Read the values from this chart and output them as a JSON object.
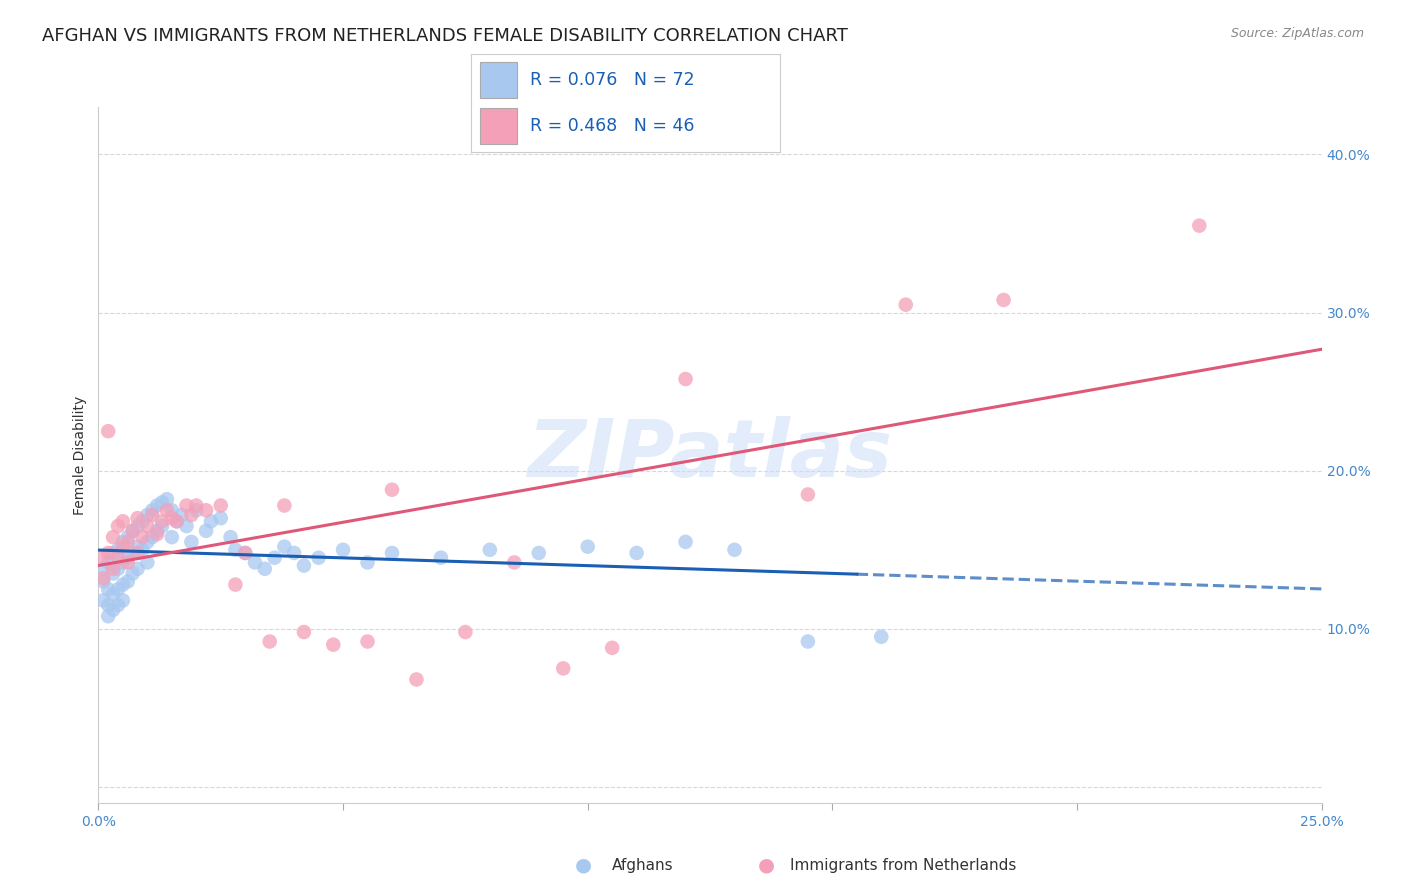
{
  "title": "AFGHAN VS IMMIGRANTS FROM NETHERLANDS FEMALE DISABILITY CORRELATION CHART",
  "source": "Source: ZipAtlas.com",
  "ylabel": "Female Disability",
  "watermark": "ZIPatlas",
  "legend_r1": "R = 0.076",
  "legend_n1": "N = 72",
  "legend_r2": "R = 0.468",
  "legend_n2": "N = 46",
  "afghan_color": "#a8c8f0",
  "netherlands_color": "#f4a0b8",
  "afghan_line_color": "#1a5fb4",
  "netherlands_line_color": "#e05878",
  "background_color": "#ffffff",
  "grid_color": "#d8d8d8",
  "title_fontsize": 13,
  "axis_label_fontsize": 10,
  "tick_fontsize": 10,
  "xlim": [
    0.0,
    0.25
  ],
  "ylim": [
    -0.01,
    0.43
  ],
  "yticks": [
    0.0,
    0.1,
    0.2,
    0.3,
    0.4
  ],
  "ytick_labels": [
    "",
    "10.0%",
    "20.0%",
    "30.0%",
    "40.0%"
  ],
  "xticks": [
    0.0,
    0.05,
    0.1,
    0.15,
    0.2,
    0.25
  ],
  "xtick_labels": [
    "0.0%",
    "",
    "",
    "",
    "",
    "25.0%"
  ],
  "afghan_scatter_x": [
    0.001,
    0.001,
    0.001,
    0.002,
    0.002,
    0.002,
    0.002,
    0.003,
    0.003,
    0.003,
    0.003,
    0.004,
    0.004,
    0.004,
    0.004,
    0.005,
    0.005,
    0.005,
    0.005,
    0.006,
    0.006,
    0.006,
    0.007,
    0.007,
    0.007,
    0.008,
    0.008,
    0.008,
    0.009,
    0.009,
    0.01,
    0.01,
    0.01,
    0.011,
    0.011,
    0.012,
    0.012,
    0.013,
    0.013,
    0.014,
    0.015,
    0.015,
    0.016,
    0.017,
    0.018,
    0.019,
    0.02,
    0.022,
    0.023,
    0.025,
    0.027,
    0.028,
    0.03,
    0.032,
    0.034,
    0.036,
    0.038,
    0.04,
    0.042,
    0.045,
    0.05,
    0.055,
    0.06,
    0.07,
    0.08,
    0.09,
    0.1,
    0.11,
    0.12,
    0.13,
    0.145,
    0.16
  ],
  "afghan_scatter_y": [
    0.138,
    0.13,
    0.118,
    0.142,
    0.125,
    0.115,
    0.108,
    0.148,
    0.135,
    0.122,
    0.112,
    0.15,
    0.138,
    0.125,
    0.115,
    0.155,
    0.142,
    0.128,
    0.118,
    0.158,
    0.145,
    0.13,
    0.162,
    0.148,
    0.135,
    0.165,
    0.152,
    0.138,
    0.168,
    0.15,
    0.172,
    0.155,
    0.142,
    0.175,
    0.158,
    0.178,
    0.162,
    0.18,
    0.165,
    0.182,
    0.175,
    0.158,
    0.168,
    0.172,
    0.165,
    0.155,
    0.175,
    0.162,
    0.168,
    0.17,
    0.158,
    0.15,
    0.148,
    0.142,
    0.138,
    0.145,
    0.152,
    0.148,
    0.14,
    0.145,
    0.15,
    0.142,
    0.148,
    0.145,
    0.15,
    0.148,
    0.152,
    0.148,
    0.155,
    0.15,
    0.092,
    0.095
  ],
  "netherlands_scatter_x": [
    0.001,
    0.001,
    0.002,
    0.002,
    0.003,
    0.003,
    0.004,
    0.004,
    0.005,
    0.005,
    0.006,
    0.006,
    0.007,
    0.008,
    0.008,
    0.009,
    0.01,
    0.011,
    0.012,
    0.013,
    0.014,
    0.015,
    0.016,
    0.018,
    0.019,
    0.02,
    0.022,
    0.025,
    0.028,
    0.03,
    0.035,
    0.038,
    0.042,
    0.048,
    0.055,
    0.06,
    0.065,
    0.075,
    0.085,
    0.095,
    0.105,
    0.12,
    0.145,
    0.165,
    0.185,
    0.225
  ],
  "netherlands_scatter_y": [
    0.132,
    0.145,
    0.148,
    0.225,
    0.138,
    0.158,
    0.145,
    0.165,
    0.152,
    0.168,
    0.142,
    0.155,
    0.162,
    0.148,
    0.17,
    0.158,
    0.165,
    0.172,
    0.16,
    0.168,
    0.175,
    0.17,
    0.168,
    0.178,
    0.172,
    0.178,
    0.175,
    0.178,
    0.128,
    0.148,
    0.092,
    0.178,
    0.098,
    0.09,
    0.092,
    0.188,
    0.068,
    0.098,
    0.142,
    0.075,
    0.088,
    0.258,
    0.185,
    0.305,
    0.308,
    0.355
  ]
}
